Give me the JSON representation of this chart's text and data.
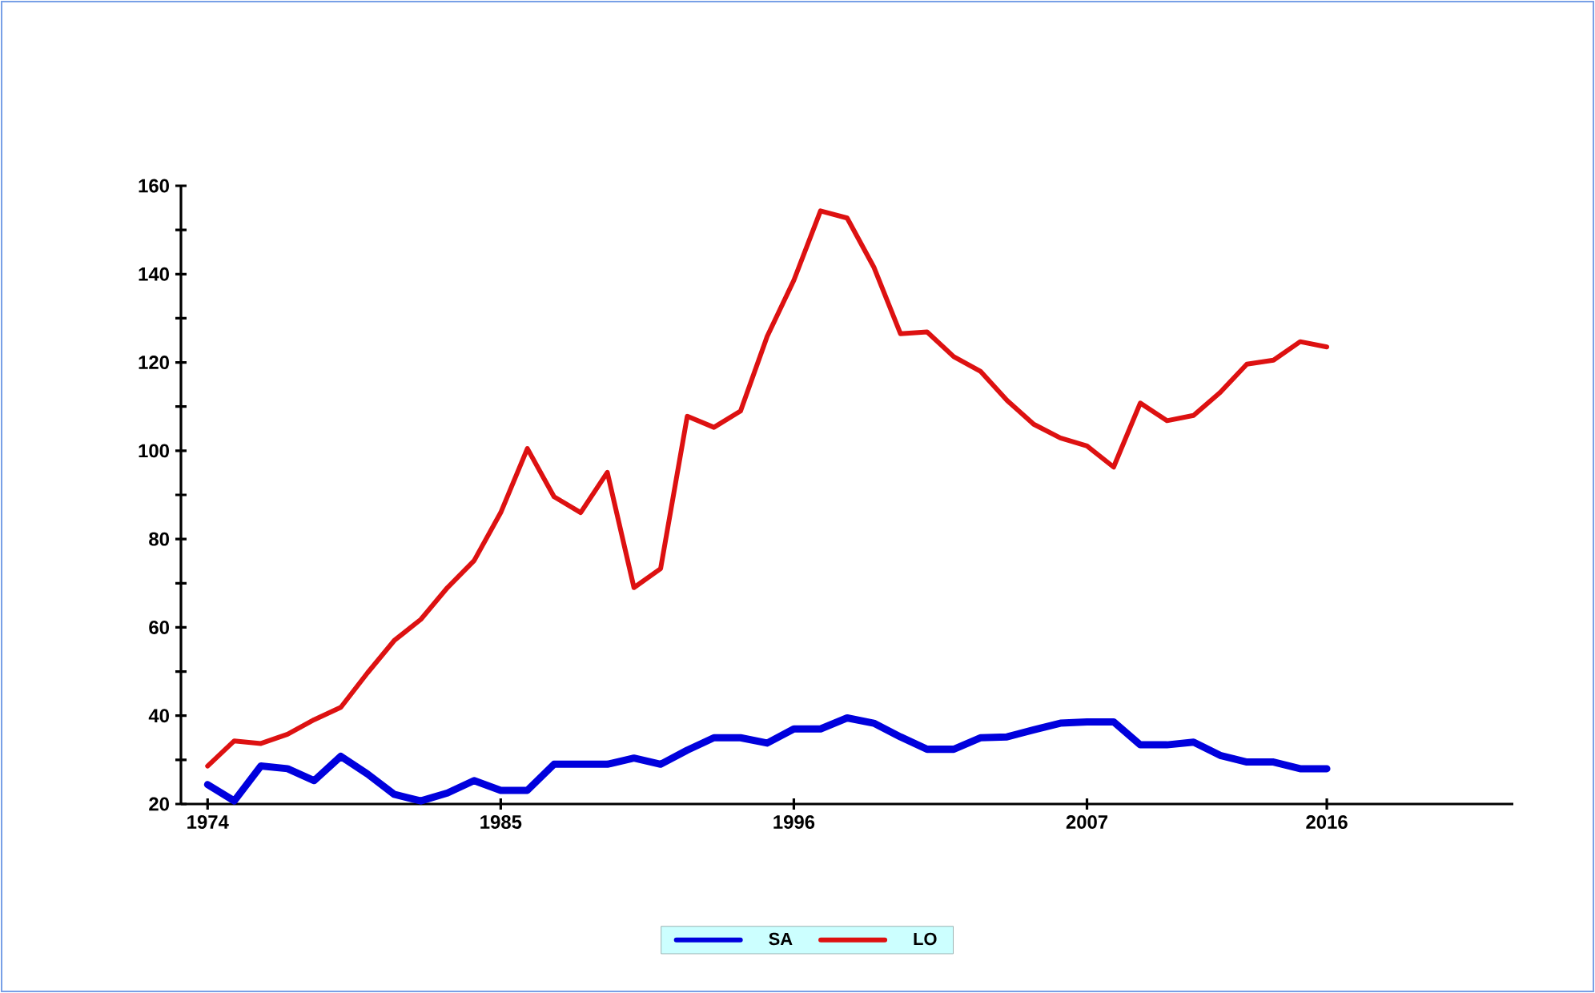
{
  "chart_data": {
    "type": "line",
    "x": [
      1974,
      1975,
      1976,
      1977,
      1978,
      1979,
      1980,
      1981,
      1982,
      1983,
      1984,
      1985,
      1986,
      1987,
      1988,
      1989,
      1990,
      1991,
      1992,
      1993,
      1994,
      1995,
      1996,
      1997,
      1998,
      1999,
      2000,
      2001,
      2002,
      2003,
      2004,
      2005,
      2006,
      2007,
      2008,
      2009,
      2010,
      2011,
      2012,
      2013,
      2014,
      2015,
      2016
    ],
    "series": [
      {
        "name": "SA",
        "color": "#0000dd",
        "values": [
          24.4,
          20.7,
          28.6,
          28,
          25.3,
          30.8,
          26.8,
          22.2,
          20.7,
          22.5,
          25.3,
          23.1,
          23.1,
          29,
          29,
          29,
          30.4,
          29,
          32.2,
          35,
          35,
          33.8,
          37,
          37,
          39.5,
          38.3,
          35.2,
          32.4,
          32.4,
          35,
          35.2,
          36.8,
          38.3,
          38.6,
          38.6,
          33.4,
          33.4,
          34,
          31,
          29.5,
          29.5,
          28,
          28
        ]
      },
      {
        "name": "LO",
        "color": "#dd1111",
        "values": [
          28.6,
          34.3,
          33.7,
          35.8,
          39.1,
          41.9,
          49.7,
          57,
          61.8,
          69,
          75.1,
          86,
          100.5,
          89.6,
          86,
          95.1,
          69,
          73.3,
          107.8,
          105.3,
          109,
          125.9,
          138.6,
          154.3,
          152.7,
          141.6,
          126.5,
          126.9,
          121.3,
          118,
          111.4,
          106,
          102.9,
          101.1,
          96.3,
          110.8,
          106.8,
          108,
          113.2,
          119.6,
          120.5,
          124.7,
          123.5
        ]
      }
    ],
    "xlim": [
      1973,
      2023
    ],
    "xticks": [
      1974,
      1985,
      1996,
      2007,
      2016
    ],
    "ylim": [
      20,
      160
    ],
    "yticks": [
      20,
      {
        "value": 30,
        "label": null
      },
      40,
      {
        "value": 50,
        "label": null
      },
      60,
      {
        "value": 70,
        "label": null
      },
      80,
      {
        "value": 90,
        "label": null
      },
      100,
      {
        "value": 110,
        "label": null
      },
      120,
      {
        "value": 130,
        "label": null
      },
      140,
      {
        "value": 150,
        "label": null
      },
      160
    ],
    "grid": false,
    "legend": "bottom",
    "marker": "none",
    "line_style": "solid"
  }
}
